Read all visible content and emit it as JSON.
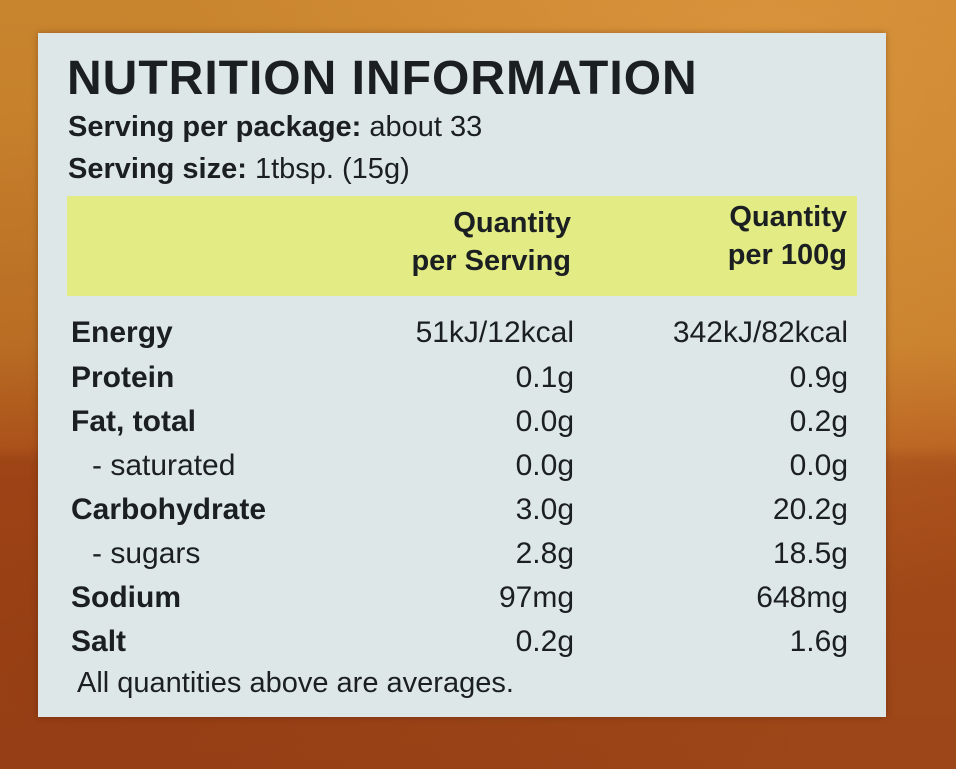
{
  "label": {
    "title": "NUTRITION INFORMATION",
    "serving_per_package_label": "Serving per package:",
    "serving_per_package_value": "about 33",
    "serving_size_label": "Serving size:",
    "serving_size_value": "1tbsp. (15g)",
    "columns": {
      "per_serving_line1": "Quantity",
      "per_serving_line2": "per Serving",
      "per_100g_line1": "Quantity",
      "per_100g_line2": "per 100g"
    },
    "rows": [
      {
        "name": "Energy",
        "per_serving": "51kJ/12kcal",
        "per_100g": "342kJ/82kcal"
      },
      {
        "name": "Protein",
        "per_serving": "0.1g",
        "per_100g": "0.9g"
      },
      {
        "name": "Fat, total",
        "per_serving": "0.0g",
        "per_100g": "0.2g"
      },
      {
        "name": "- saturated",
        "per_serving": "0.0g",
        "per_100g": "0.0g"
      },
      {
        "name": "Carbohydrate",
        "per_serving": "3.0g",
        "per_100g": "20.2g"
      },
      {
        "name": "- sugars",
        "per_serving": "2.8g",
        "per_100g": "18.5g"
      },
      {
        "name": "Sodium",
        "per_serving": "97mg",
        "per_100g": "648mg"
      },
      {
        "name": "Salt",
        "per_serving": "0.2g",
        "per_100g": "1.6g"
      }
    ],
    "footnote": "All quantities above are averages."
  },
  "colors": {
    "label_background": "#dde7e8",
    "header_band": "#e3ec84",
    "package_orange": "#c27a28",
    "package_rust": "#a8501e",
    "text": "#1b1f22"
  }
}
